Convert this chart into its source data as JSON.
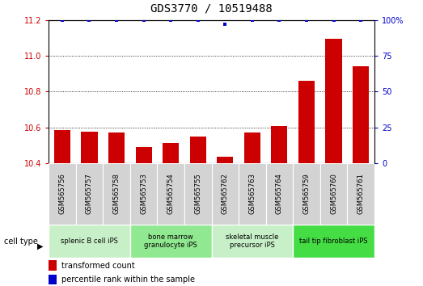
{
  "title": "GDS3770 / 10519488",
  "samples": [
    "GSM565756",
    "GSM565757",
    "GSM565758",
    "GSM565753",
    "GSM565754",
    "GSM565755",
    "GSM565762",
    "GSM565763",
    "GSM565764",
    "GSM565759",
    "GSM565760",
    "GSM565761"
  ],
  "transformed_count": [
    10.585,
    10.575,
    10.57,
    10.49,
    10.51,
    10.55,
    10.435,
    10.57,
    10.605,
    10.86,
    11.095,
    10.94
  ],
  "percentile_rank": [
    100,
    100,
    100,
    100,
    100,
    100,
    97,
    100,
    100,
    100,
    100,
    100
  ],
  "ylim_left": [
    10.4,
    11.2
  ],
  "ylim_right": [
    0,
    100
  ],
  "yticks_left": [
    10.4,
    10.6,
    10.8,
    11.0,
    11.2
  ],
  "yticks_right": [
    0,
    25,
    50,
    75,
    100
  ],
  "cell_type_groups": [
    {
      "label": "splenic B cell iPS",
      "start": 0,
      "end": 3,
      "color": "#c8f0c8"
    },
    {
      "label": "bone marrow\ngranulocyte iPS",
      "start": 3,
      "end": 6,
      "color": "#90e890"
    },
    {
      "label": "skeletal muscle\nprecursor iPS",
      "start": 6,
      "end": 9,
      "color": "#c8f0c8"
    },
    {
      "label": "tail tip fibroblast iPS",
      "start": 9,
      "end": 12,
      "color": "#44dd44"
    }
  ],
  "bar_color": "#cc0000",
  "dot_color": "#0000cc",
  "bar_width": 0.6,
  "background_color": "#ffffff",
  "title_fontsize": 10,
  "tick_fontsize": 7,
  "label_fontsize": 7
}
